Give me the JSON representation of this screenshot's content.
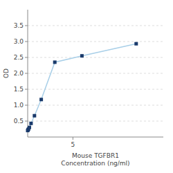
{
  "chart_data": {
    "type": "line",
    "x": [
      0,
      0.047,
      0.094,
      0.188,
      0.375,
      0.75,
      1.5,
      3,
      6,
      12
    ],
    "values": [
      0.204,
      0.226,
      0.252,
      0.301,
      0.428,
      0.669,
      1.178,
      2.35,
      2.55,
      2.93
    ],
    "color": "#a8cfe8",
    "colors": [
      "#1a3a6b",
      "#1a3a6b",
      "#1a3a6b",
      "#1a3a6b",
      "#1a3a6b",
      "#1a3a6b",
      "#1a3a6b",
      "#1a3a6b",
      "#1a3a6b",
      "#1a3a6b"
    ],
    "marker": "square",
    "xlabel": "Mouse TGFBR1\nConcentration (ng/ml)",
    "ylabel": "OD",
    "xlim": [
      0,
      15
    ],
    "ylim": [
      0.0,
      4.0
    ],
    "yticks": [
      0.5,
      {
        "value": 1.0,
        "label": "1.0"
      },
      1.5,
      {
        "value": 2.0,
        "label": "2.0"
      },
      2.5,
      {
        "value": 3.0,
        "label": "3.0"
      },
      3.5
    ],
    "xticks": [
      5
    ],
    "grid": true
  }
}
